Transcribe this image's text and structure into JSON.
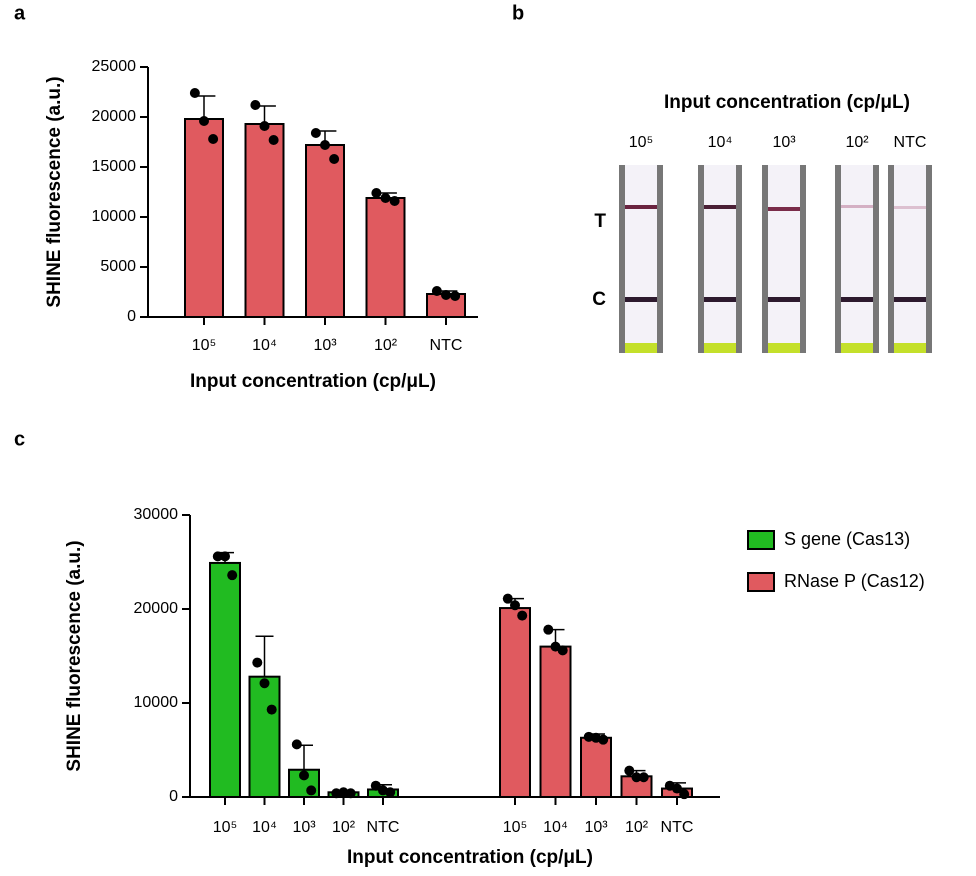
{
  "chart_data": [
    {
      "type": "bar",
      "panel_label": "a",
      "x_label": "Input concentration (cp/μL)",
      "y_label": "SHINE fluorescence (a.u.)",
      "categories": [
        "10⁵",
        "10⁴",
        "10³",
        "10²",
        "NTC"
      ],
      "values": [
        19800,
        19300,
        17200,
        11900,
        2300
      ],
      "errors": [
        2300,
        1800,
        1400,
        500,
        300
      ],
      "points": [
        [
          22400,
          19600,
          17800
        ],
        [
          21200,
          19100,
          17700
        ],
        [
          18400,
          17200,
          15800
        ],
        [
          12400,
          11900,
          11600
        ],
        [
          2600,
          2200,
          2100
        ]
      ],
      "color": "#e05a5f",
      "ylim": [
        0,
        25000
      ],
      "yticks": [
        0,
        5000,
        10000,
        15000,
        20000,
        25000
      ]
    },
    {
      "type": "bar",
      "panel_label": "c",
      "x_label": "Input concentration (cp/μL)",
      "y_label": "SHINE fluorescence (a.u.)",
      "categories": [
        "10⁵",
        "10⁴",
        "10³",
        "10²",
        "NTC"
      ],
      "series": [
        {
          "name": "S gene (Cas13)",
          "color": "#21bb21",
          "values": [
            24900,
            12800,
            2900,
            500,
            800
          ],
          "errors": [
            1100,
            4300,
            2600,
            100,
            500
          ],
          "points": [
            [
              25600,
              25600,
              23600
            ],
            [
              14300,
              12100,
              9300
            ],
            [
              5600,
              2300,
              700
            ],
            [
              400,
              500,
              400
            ],
            [
              1200,
              700,
              500
            ]
          ]
        },
        {
          "name": "RNase P (Cas12)",
          "color": "#e05a5f",
          "values": [
            20100,
            16000,
            6300,
            2200,
            900
          ],
          "errors": [
            1000,
            1800,
            400,
            600,
            600
          ],
          "points": [
            [
              21100,
              20400,
              19300
            ],
            [
              17800,
              16000,
              15600
            ],
            [
              6400,
              6300,
              6100
            ],
            [
              2800,
              2100,
              2100
            ],
            [
              1200,
              900,
              300
            ]
          ]
        }
      ],
      "ylim": [
        0,
        30000
      ],
      "yticks": [
        0,
        10000,
        20000,
        30000
      ]
    }
  ],
  "strip_panel": {
    "panel_label": "b",
    "title": "Input concentration (cp/μL)",
    "lanes": [
      "10⁵",
      "10⁴",
      "10³",
      "10²",
      "NTC"
    ],
    "line_labels": [
      "T",
      "C"
    ]
  }
}
